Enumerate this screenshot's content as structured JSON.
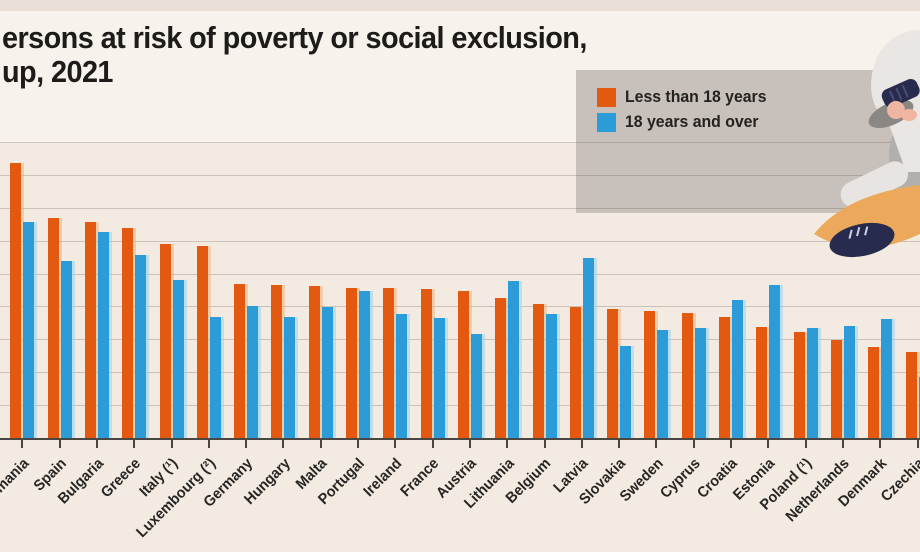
{
  "title": {
    "line1": "ersons at risk of poverty or social exclusion,",
    "line2": "up, 2021"
  },
  "legend": {
    "items": [
      {
        "label": "Less than 18 years",
        "color": "#e2590f"
      },
      {
        "label": "18 years and over",
        "color": "#2b9cd8"
      }
    ],
    "position": "top-right"
  },
  "chart_data": {
    "type": "bar",
    "title": "ersons at risk of poverty or social exclusion, up, 2021",
    "xlabel": "",
    "ylabel": "",
    "categories": [
      "Romania",
      "Spain",
      "Bulgaria",
      "Greece",
      "Italy (¹)",
      "Luxembourg (²)",
      "Germany",
      "Hungary",
      "Malta",
      "Portugal",
      "Ireland",
      "France",
      "Austria",
      "Lithuania",
      "Belgium",
      "Latvia",
      "Slovakia",
      "Sweden",
      "Cyprus",
      "Croatia",
      "Estonia",
      "Poland (¹)",
      "Netherlands",
      "Denmark",
      "Czechia"
    ],
    "series": [
      {
        "name": "Less than 18 years",
        "color": "#e2590f",
        "values": [
          42,
          33.6,
          33,
          32,
          29.6,
          29.4,
          23.5,
          23.4,
          23.2,
          23,
          22.9,
          22.8,
          22.5,
          21.5,
          20.5,
          20,
          19.7,
          19.5,
          19.2,
          18.5,
          17,
          16.2,
          15,
          14,
          13.2
        ]
      },
      {
        "name": "18 years and over",
        "color": "#2b9cd8",
        "values": [
          33,
          27,
          31.5,
          28,
          24.2,
          18.5,
          20.2,
          18.6,
          20,
          22.5,
          19,
          18.4,
          16,
          24,
          19,
          27.5,
          14.2,
          16.6,
          16.8,
          21.2,
          23.4,
          16.8,
          17.2,
          18.2,
          9.5
        ]
      }
    ],
    "ylim": [
      0,
      45
    ],
    "gridline_step": 5,
    "grid": "horizontal",
    "y_axis_tick_labels_visible": false,
    "x_labels_rotation_deg": -45,
    "notes": "chart cropped at left and right edges; first category label and last bar partially cut off"
  },
  "colors": {
    "background": "#f3eae2",
    "title_panel": "#f8f2ec",
    "legend_box": "#c8c0ba",
    "bar_children": "#e2590f",
    "bar_adults": "#2b9cd8",
    "axis": "#4a4742",
    "text": "#1d1c1a"
  },
  "illustration": {
    "description": "person crouching with binoculars, grey hoodie, orange trousers, navy shoes"
  }
}
